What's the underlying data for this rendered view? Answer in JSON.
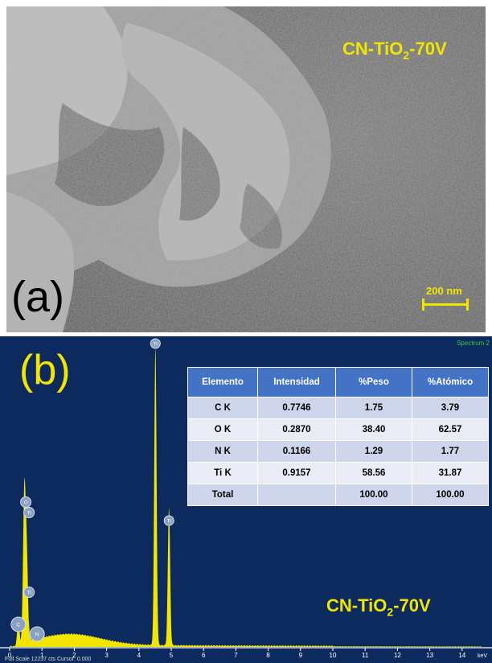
{
  "panel_a": {
    "letter": "(a)",
    "sample_main": "CN-TiO",
    "sample_sub": "2",
    "sample_tail": "-70V",
    "scale_text": "200 nm"
  },
  "panel_b": {
    "letter": "(b)",
    "spectrum_title": "Spectrum 2",
    "sample_main": "CN-TiO",
    "sample_sub": "2",
    "sample_tail": "-70V",
    "footer": "Full Scale 12237 cts Cursor: 0.000",
    "x_unit": "keV",
    "x_ticks": [
      "0",
      "1",
      "2",
      "3",
      "4",
      "5",
      "6",
      "7",
      "8",
      "9",
      "10",
      "11",
      "12",
      "13",
      "14"
    ],
    "peak_labels": [
      "Ti",
      "Ti",
      "O",
      "Ti",
      "Ti",
      "C",
      "N"
    ],
    "table": {
      "headers": [
        "Elemento",
        "Intensidad",
        "%Peso",
        "%Atómico"
      ],
      "rows": [
        [
          "C K",
          "0.7746",
          "1.75",
          "3.79"
        ],
        [
          "O K",
          "0.2870",
          "38.40",
          "62.57"
        ],
        [
          "N K",
          "0.1166",
          "1.29",
          "1.77"
        ],
        [
          "Ti K",
          "0.9157",
          "58.56",
          "31.87"
        ],
        [
          "Total",
          "",
          "100.00",
          "100.00"
        ]
      ]
    }
  },
  "colors": {
    "accent_yellow": "#f2e600",
    "plot_bg": "#0d2a5e",
    "table_header": "#4472c4"
  }
}
